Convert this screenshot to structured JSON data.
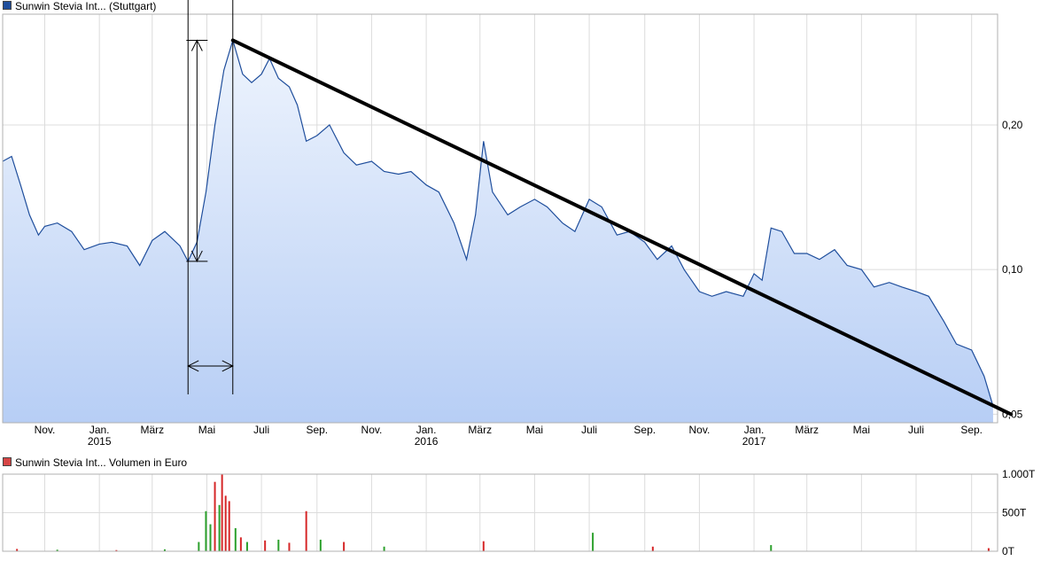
{
  "price_legend": {
    "label": "Sunwin Stevia Int... (Stuttgart)",
    "color": "#1f4e9c"
  },
  "volume_legend": {
    "label": "Sunwin Stevia Int... Volumen in Euro",
    "color": "#d64545"
  },
  "chart_data": [
    {
      "type": "area",
      "title": "Sunwin Stevia Int... (Stuttgart)",
      "y_scale": "log",
      "ylim": [
        0.048,
        0.34
      ],
      "y_ticks": [
        {
          "value": 0.05,
          "label": "0,05"
        },
        {
          "value": 0.1,
          "label": "0,10"
        },
        {
          "value": 0.2,
          "label": "0,20"
        }
      ],
      "x_range": [
        "2014-09-15",
        "2017-09-30"
      ],
      "x_ticks": [
        {
          "date": "2014-11-01",
          "label": "Nov.",
          "year": ""
        },
        {
          "date": "2015-01-01",
          "label": "Jan.",
          "year": "2015"
        },
        {
          "date": "2015-03-01",
          "label": "März",
          "year": ""
        },
        {
          "date": "2015-05-01",
          "label": "Mai",
          "year": ""
        },
        {
          "date": "2015-07-01",
          "label": "Juli",
          "year": ""
        },
        {
          "date": "2015-09-01",
          "label": "Sep.",
          "year": ""
        },
        {
          "date": "2015-11-01",
          "label": "Nov.",
          "year": ""
        },
        {
          "date": "2016-01-01",
          "label": "Jan.",
          "year": "2016"
        },
        {
          "date": "2016-03-01",
          "label": "März",
          "year": ""
        },
        {
          "date": "2016-05-01",
          "label": "Mai",
          "year": ""
        },
        {
          "date": "2016-07-01",
          "label": "Juli",
          "year": ""
        },
        {
          "date": "2016-09-01",
          "label": "Sep.",
          "year": ""
        },
        {
          "date": "2016-11-01",
          "label": "Nov.",
          "year": ""
        },
        {
          "date": "2017-01-01",
          "label": "Jan.",
          "year": "2017"
        },
        {
          "date": "2017-03-01",
          "label": "März",
          "year": ""
        },
        {
          "date": "2017-05-01",
          "label": "Mai",
          "year": ""
        },
        {
          "date": "2017-07-01",
          "label": "Juli",
          "year": ""
        },
        {
          "date": "2017-09-01",
          "label": "Sep.",
          "year": ""
        }
      ],
      "grid": true,
      "series": [
        {
          "name": "Sunwin Stevia Int... (Stuttgart)",
          "color": "#1f4e9c",
          "fill_top": "#eef4fd",
          "fill_bottom": "#b7cef5",
          "points": [
            [
              "2014-09-15",
              0.168
            ],
            [
              "2014-09-25",
              0.172
            ],
            [
              "2014-10-05",
              0.15
            ],
            [
              "2014-10-15",
              0.13
            ],
            [
              "2014-10-25",
              0.118
            ],
            [
              "2014-11-01",
              0.123
            ],
            [
              "2014-11-15",
              0.125
            ],
            [
              "2014-12-01",
              0.12
            ],
            [
              "2014-12-15",
              0.11
            ],
            [
              "2015-01-01",
              0.113
            ],
            [
              "2015-01-15",
              0.114
            ],
            [
              "2015-02-01",
              0.112
            ],
            [
              "2015-02-15",
              0.102
            ],
            [
              "2015-03-01",
              0.115
            ],
            [
              "2015-03-15",
              0.12
            ],
            [
              "2015-04-01",
              0.112
            ],
            [
              "2015-04-10",
              0.104
            ],
            [
              "2015-04-20",
              0.114
            ],
            [
              "2015-04-30",
              0.145
            ],
            [
              "2015-05-10",
              0.2
            ],
            [
              "2015-05-20",
              0.26
            ],
            [
              "2015-05-30",
              0.3
            ],
            [
              "2015-06-10",
              0.255
            ],
            [
              "2015-06-20",
              0.245
            ],
            [
              "2015-07-01",
              0.255
            ],
            [
              "2015-07-10",
              0.275
            ],
            [
              "2015-07-20",
              0.25
            ],
            [
              "2015-08-01",
              0.24
            ],
            [
              "2015-08-10",
              0.22
            ],
            [
              "2015-08-20",
              0.185
            ],
            [
              "2015-09-01",
              0.19
            ],
            [
              "2015-09-15",
              0.2
            ],
            [
              "2015-10-01",
              0.175
            ],
            [
              "2015-10-15",
              0.165
            ],
            [
              "2015-11-01",
              0.168
            ],
            [
              "2015-11-15",
              0.16
            ],
            [
              "2015-12-01",
              0.158
            ],
            [
              "2015-12-15",
              0.16
            ],
            [
              "2016-01-01",
              0.15
            ],
            [
              "2016-01-15",
              0.145
            ],
            [
              "2016-02-01",
              0.125
            ],
            [
              "2016-02-15",
              0.105
            ],
            [
              "2016-02-25",
              0.13
            ],
            [
              "2016-03-05",
              0.185
            ],
            [
              "2016-03-15",
              0.145
            ],
            [
              "2016-04-01",
              0.13
            ],
            [
              "2016-04-15",
              0.135
            ],
            [
              "2016-05-01",
              0.14
            ],
            [
              "2016-05-15",
              0.135
            ],
            [
              "2016-06-01",
              0.125
            ],
            [
              "2016-06-15",
              0.12
            ],
            [
              "2016-07-01",
              0.14
            ],
            [
              "2016-07-15",
              0.135
            ],
            [
              "2016-08-01",
              0.118
            ],
            [
              "2016-08-15",
              0.12
            ],
            [
              "2016-09-01",
              0.114
            ],
            [
              "2016-09-15",
              0.105
            ],
            [
              "2016-10-01",
              0.112
            ],
            [
              "2016-10-15",
              0.1
            ],
            [
              "2016-11-01",
              0.09
            ],
            [
              "2016-11-15",
              0.088
            ],
            [
              "2016-12-01",
              0.09
            ],
            [
              "2016-12-20",
              0.088
            ],
            [
              "2017-01-01",
              0.098
            ],
            [
              "2017-01-10",
              0.095
            ],
            [
              "2017-01-20",
              0.122
            ],
            [
              "2017-02-01",
              0.12
            ],
            [
              "2017-02-15",
              0.108
            ],
            [
              "2017-03-01",
              0.108
            ],
            [
              "2017-03-15",
              0.105
            ],
            [
              "2017-04-01",
              0.11
            ],
            [
              "2017-04-15",
              0.102
            ],
            [
              "2017-05-01",
              0.1
            ],
            [
              "2017-05-15",
              0.092
            ],
            [
              "2017-06-01",
              0.094
            ],
            [
              "2017-06-15",
              0.092
            ],
            [
              "2017-07-01",
              0.09
            ],
            [
              "2017-07-15",
              0.088
            ],
            [
              "2017-08-01",
              0.078
            ],
            [
              "2017-08-15",
              0.07
            ],
            [
              "2017-09-01",
              0.068
            ],
            [
              "2017-09-15",
              0.06
            ],
            [
              "2017-09-25",
              0.052
            ]
          ]
        }
      ],
      "annotations": [
        {
          "type": "trendline",
          "from": [
            "2015-05-30",
            0.3
          ],
          "to": [
            "2017-10-15",
            0.05
          ],
          "color": "#000000"
        },
        {
          "type": "vertical-line",
          "date": "2015-04-10",
          "from": 0.055,
          "to": 0.42
        },
        {
          "type": "vertical-line",
          "date": "2015-05-30",
          "from": 0.055,
          "to": 0.42
        },
        {
          "type": "vertical-arrow",
          "date": "2015-04-20",
          "from": 0.104,
          "to": 0.3
        },
        {
          "type": "horizontal-arrow",
          "value": 0.063,
          "from": "2015-04-10",
          "to": "2015-05-30"
        }
      ]
    },
    {
      "type": "bar",
      "title": "Sunwin Stevia Int... Volumen in Euro",
      "ylim": [
        0,
        1000
      ],
      "y_ticks": [
        {
          "value": 0,
          "label": "0T"
        },
        {
          "value": 500,
          "label": "500T"
        },
        {
          "value": 1000,
          "label": "1.000T"
        }
      ],
      "grid": true,
      "colors": {
        "up": "#2ca02c",
        "down": "#d62728"
      },
      "bars": [
        [
          "2014-10-01",
          30,
          "down"
        ],
        [
          "2014-11-15",
          20,
          "up"
        ],
        [
          "2015-01-20",
          15,
          "down"
        ],
        [
          "2015-03-15",
          25,
          "up"
        ],
        [
          "2015-04-22",
          120,
          "up"
        ],
        [
          "2015-04-30",
          520,
          "up"
        ],
        [
          "2015-05-05",
          350,
          "up"
        ],
        [
          "2015-05-10",
          900,
          "down"
        ],
        [
          "2015-05-15",
          600,
          "up"
        ],
        [
          "2015-05-18",
          1000,
          "down"
        ],
        [
          "2015-05-22",
          720,
          "down"
        ],
        [
          "2015-05-26",
          650,
          "down"
        ],
        [
          "2015-06-02",
          300,
          "up"
        ],
        [
          "2015-06-08",
          180,
          "down"
        ],
        [
          "2015-06-15",
          120,
          "up"
        ],
        [
          "2015-07-05",
          140,
          "down"
        ],
        [
          "2015-07-20",
          150,
          "up"
        ],
        [
          "2015-08-01",
          110,
          "down"
        ],
        [
          "2015-08-20",
          520,
          "down"
        ],
        [
          "2015-09-05",
          150,
          "up"
        ],
        [
          "2015-10-01",
          120,
          "down"
        ],
        [
          "2015-11-15",
          60,
          "up"
        ],
        [
          "2016-03-05",
          130,
          "down"
        ],
        [
          "2016-07-05",
          240,
          "up"
        ],
        [
          "2016-09-10",
          60,
          "down"
        ],
        [
          "2017-01-20",
          80,
          "up"
        ],
        [
          "2017-09-20",
          40,
          "down"
        ]
      ]
    }
  ]
}
